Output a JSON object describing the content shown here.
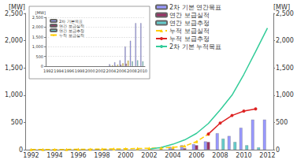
{
  "chart_data": [
    {
      "type": "bar",
      "categories": [
        "1992",
        null,
        "1994",
        null,
        "1996",
        null,
        "1998",
        null,
        "2000",
        null,
        "2002",
        null,
        "2004",
        null,
        "2006",
        null,
        "2008",
        null,
        "2010",
        null,
        "2012"
      ],
      "y_label": "[MW]",
      "y2_label": "[MW]",
      "ylim": [
        0,
        2500
      ],
      "yticks": [
        0,
        {
          "value": 500,
          "label": "500"
        },
        {
          "value": 1000,
          "label": "1,000"
        },
        {
          "value": 1500,
          "label": "1,500"
        },
        {
          "value": 2000,
          "label": "2,000"
        },
        {
          "value": 2500,
          "label": "2,500"
        }
      ],
      "y2lim": [
        0,
        2500
      ],
      "y2ticks": [
        0,
        {
          "value": 500,
          "label": "500"
        },
        {
          "value": 1000,
          "label": "1,000"
        },
        {
          "value": 1500,
          "label": "1,500"
        },
        {
          "value": 2000,
          "label": "2,000"
        },
        {
          "value": 2500,
          "label": "2,500"
        }
      ],
      "legend": "top",
      "grid": false,
      "series": [
        {
          "name": "2차 기본 연간목표",
          "type": "bar",
          "color": "#9999ff",
          "values": [
            null,
            null,
            null,
            null,
            null,
            null,
            null,
            null,
            null,
            null,
            null,
            null,
            50,
            80,
            100,
            150,
            300,
            250,
            400,
            550,
            550
          ]
        },
        {
          "name": "연간 보급실적",
          "type": "bar",
          "color": "#993366",
          "values": [
            1,
            1,
            1,
            1,
            2,
            2,
            2,
            3,
            3,
            4,
            5,
            6,
            10,
            25,
            80,
            140,
            null,
            null,
            null,
            null,
            null
          ]
        },
        {
          "name": "연간 보급추정",
          "type": "bar",
          "color": "#66cccc",
          "values": [
            null,
            null,
            null,
            null,
            null,
            null,
            null,
            null,
            null,
            null,
            null,
            null,
            null,
            null,
            null,
            null,
            200,
            140,
            80,
            40,
            null
          ]
        },
        {
          "name": "누적 보급실적",
          "type": "line",
          "color": "#ffcc00",
          "line_style": "dashed",
          "marker": "triangle",
          "axis": "y2",
          "values": [
            2,
            3,
            4,
            5,
            7,
            9,
            11,
            14,
            17,
            21,
            26,
            32,
            42,
            67,
            147,
            287,
            null,
            null,
            null,
            null,
            null
          ]
        },
        {
          "name": "누적 보급추정",
          "type": "line",
          "color": "#dd2222",
          "line_style": "solid",
          "marker": "circle",
          "axis": "y2",
          "values": [
            null,
            null,
            null,
            null,
            null,
            null,
            null,
            null,
            null,
            null,
            null,
            null,
            null,
            null,
            null,
            287,
            487,
            627,
            707,
            747,
            null
          ]
        },
        {
          "name": "2차 기본 누적목표",
          "type": "line",
          "color": "#33cc99",
          "line_style": "solid",
          "marker": "none",
          "axis": "y2",
          "values": [
            null,
            null,
            null,
            null,
            null,
            null,
            null,
            null,
            null,
            null,
            10,
            40,
            100,
            180,
            300,
            480,
            730,
            1000,
            1380,
            1800,
            2230
          ]
        }
      ]
    },
    {
      "type": "bar",
      "categories": [
        "1992",
        null,
        "1994",
        null,
        "1996",
        null,
        "1998",
        null,
        "2000",
        null,
        "2002",
        null,
        "2004",
        null,
        "2006",
        null,
        "2008",
        null,
        "2010"
      ],
      "y_label": "[MW]",
      "ylim": [
        0,
        2500
      ],
      "yticks": [
        0,
        {
          "value": 500,
          "label": "500"
        },
        {
          "value": 1000,
          "label": "1,000"
        },
        {
          "value": 1500,
          "label": "1,500"
        },
        {
          "value": 2000,
          "label": "2,000"
        },
        {
          "value": 2500,
          "label": "2,500"
        }
      ],
      "legend": "upper left",
      "grid": true,
      "series": [
        {
          "name": "2차 기본목표",
          "color": "#9999ff",
          "values": [
            null,
            null,
            null,
            null,
            null,
            null,
            null,
            null,
            null,
            null,
            null,
            null,
            100,
            200,
            300,
            1000,
            1300,
            2200,
            2200
          ]
        },
        {
          "name": "연간 보급실적",
          "color": "#993366",
          "values": [
            null,
            null,
            null,
            null,
            null,
            null,
            null,
            null,
            null,
            null,
            null,
            null,
            10,
            20,
            70,
            130,
            null,
            null,
            null
          ]
        },
        {
          "name": "연간 보급추정",
          "color": "#66cccc",
          "values": [
            null,
            null,
            null,
            null,
            null,
            null,
            null,
            null,
            null,
            null,
            null,
            null,
            null,
            null,
            null,
            null,
            250,
            300,
            250
          ]
        },
        {
          "name": "누적 보급실적",
          "color": "#ffcc00",
          "values": [
            null,
            null,
            null,
            null,
            null,
            null,
            null,
            null,
            null,
            null,
            null,
            null,
            50,
            80,
            150,
            287,
            null,
            null,
            null
          ]
        }
      ]
    }
  ]
}
